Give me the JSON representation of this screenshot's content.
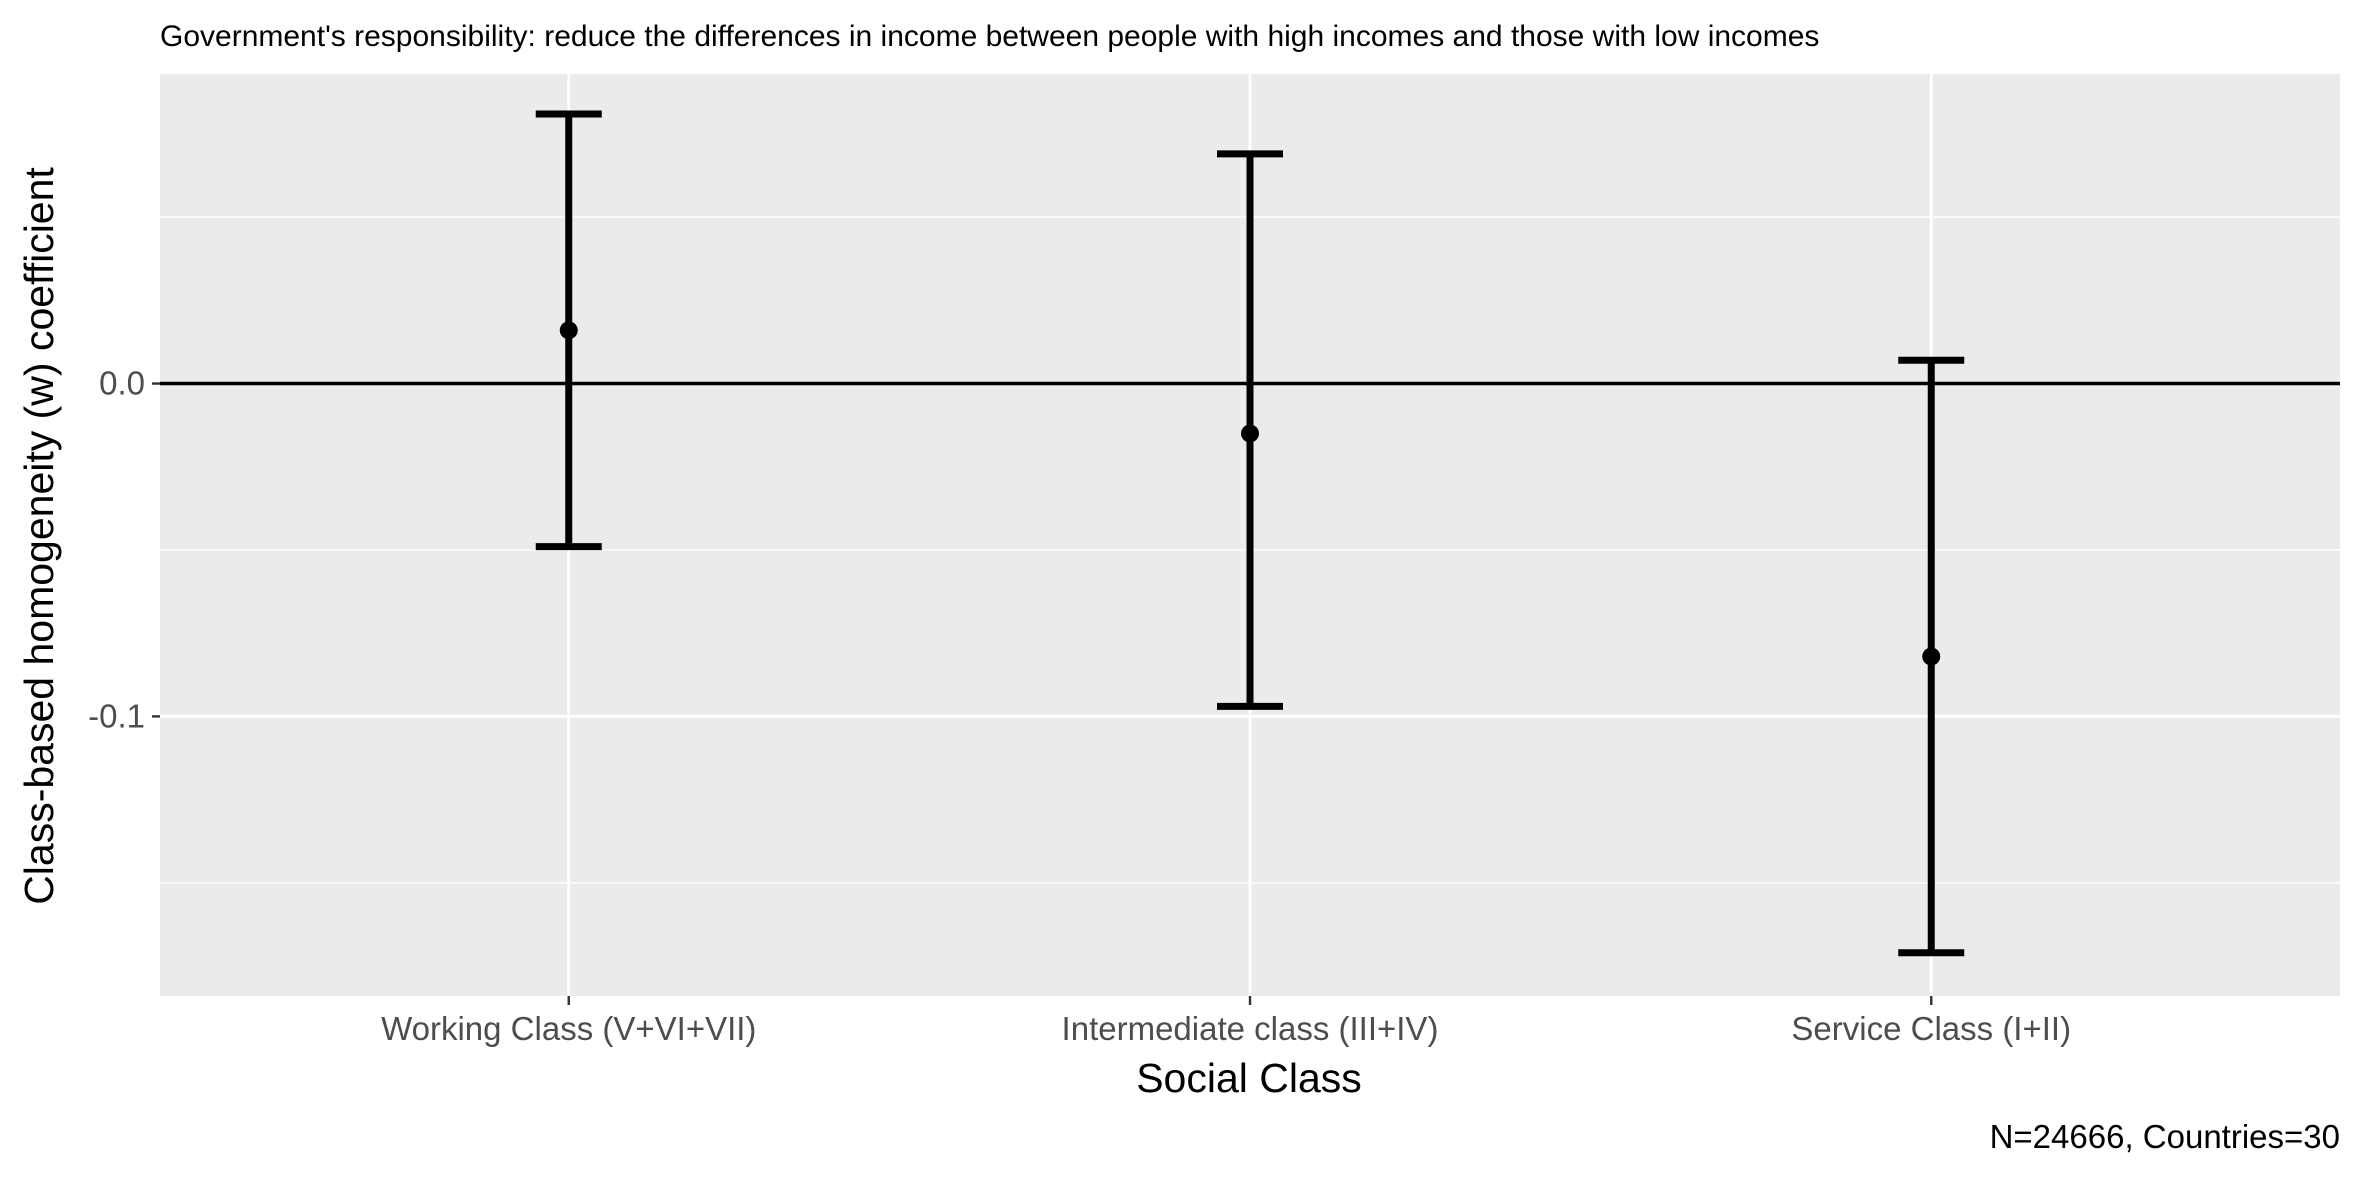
{
  "chart_data": {
    "type": "errorbar",
    "title": "Government's responsibility: reduce the differences in income between people with high incomes and those with low incomes",
    "xlabel": "Social Class",
    "ylabel": "Class-based homogeneity (w) coefficient",
    "caption": "N=24666, Countries=30",
    "categories": [
      "Working Class (V+VI+VII)",
      "Intermediate class (III+IV)",
      "Service Class (I+II)"
    ],
    "estimates": [
      0.016,
      -0.015,
      -0.082
    ],
    "lower": [
      -0.049,
      -0.097,
      -0.171
    ],
    "upper": [
      0.081,
      0.069,
      0.007
    ],
    "ylim": [
      -0.184,
      0.093
    ],
    "yticks": [
      0.0,
      -0.1
    ],
    "ytick_labels": [
      "0.0",
      "-0.1"
    ],
    "y_minor_gridlines": [
      0.05,
      -0.05,
      -0.15
    ],
    "reference_line": 0,
    "grid": true,
    "panel_background": "#ebebeb",
    "gridline_color": "#ffffff",
    "mark_color": "#000000"
  }
}
